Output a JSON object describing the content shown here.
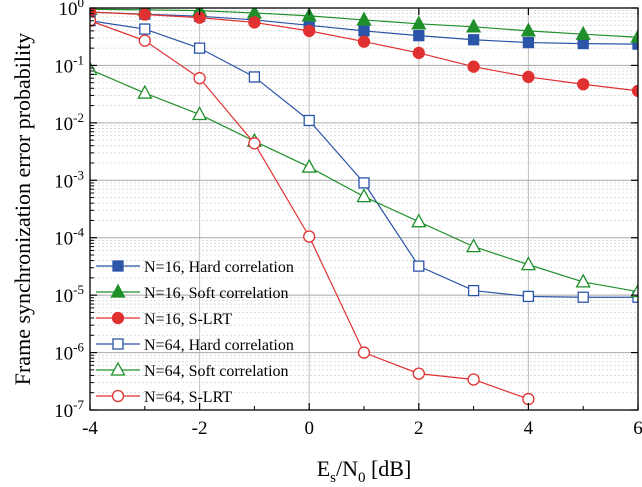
{
  "chart_data": {
    "type": "line",
    "title": "",
    "xlabel": "E_s/N_0 [dB]",
    "xlabel_parts": {
      "main": "E",
      "sub1": "s",
      "mid": "/N",
      "sub2": "0",
      "unit": " [dB]"
    },
    "ylabel": "Frame synchronization error probability",
    "x_scale": "linear",
    "y_scale": "log",
    "xlim": [
      -4,
      6
    ],
    "ylim": [
      1e-07,
      1
    ],
    "xticks": [
      -4,
      -2,
      0,
      2,
      4,
      6
    ],
    "xtick_labels": [
      "-4",
      "-2",
      "0",
      "2",
      "4",
      "6"
    ],
    "yticks": [
      1e-07,
      1e-06,
      1e-05,
      0.0001,
      0.001,
      0.01,
      0.1,
      1
    ],
    "ytick_labels": [
      {
        "base": "10",
        "exp": "-7"
      },
      {
        "base": "10",
        "exp": "-6"
      },
      {
        "base": "10",
        "exp": "-5"
      },
      {
        "base": "10",
        "exp": "-4"
      },
      {
        "base": "10",
        "exp": "-3"
      },
      {
        "base": "10",
        "exp": "-2"
      },
      {
        "base": "10",
        "exp": "-1"
      },
      {
        "base": "10",
        "exp": "0"
      }
    ],
    "grid": true,
    "legend_position": "bottom-left",
    "series": [
      {
        "name": "N=16, Hard correlation",
        "color": "#2b55a8",
        "marker": "square",
        "filled": true,
        "x": [
          -4,
          -3,
          -2,
          -1,
          0,
          1,
          2,
          3,
          4,
          5,
          6
        ],
        "y": [
          0.85,
          0.78,
          0.72,
          0.62,
          0.5,
          0.4,
          0.33,
          0.28,
          0.25,
          0.24,
          0.235
        ]
      },
      {
        "name": "N=16, Soft correlation",
        "color": "#1f8f2a",
        "marker": "triangle",
        "filled": true,
        "x": [
          -4,
          -3,
          -2,
          -1,
          0,
          1,
          2,
          3,
          4,
          5,
          6
        ],
        "y": [
          0.95,
          0.93,
          0.9,
          0.82,
          0.73,
          0.62,
          0.53,
          0.47,
          0.4,
          0.35,
          0.31
        ]
      },
      {
        "name": "N=16, S-LRT",
        "color": "#e03131",
        "marker": "circle",
        "filled": true,
        "x": [
          -4,
          -3,
          -2,
          -1,
          0,
          1,
          2,
          3,
          4,
          5,
          6
        ],
        "y": [
          0.85,
          0.77,
          0.68,
          0.56,
          0.4,
          0.26,
          0.165,
          0.095,
          0.063,
          0.047,
          0.036
        ]
      },
      {
        "name": "N=64, Hard correlation",
        "color": "#2b55a8",
        "marker": "square",
        "filled": false,
        "x": [
          -4,
          -3,
          -2,
          -1,
          0,
          1,
          2,
          3,
          4,
          5,
          6
        ],
        "y": [
          0.6,
          0.43,
          0.2,
          0.063,
          0.011,
          0.0009,
          3.2e-05,
          1.2e-05,
          9.5e-06,
          9.2e-06,
          9.2e-06
        ]
      },
      {
        "name": "N=64, Soft correlation",
        "color": "#1f8f2a",
        "marker": "triangle",
        "filled": false,
        "x": [
          -4,
          -3,
          -2,
          -1,
          0,
          1,
          2,
          3,
          4,
          5,
          6
        ],
        "y": [
          0.085,
          0.033,
          0.014,
          0.0048,
          0.0017,
          0.00052,
          0.00019,
          7e-05,
          3.4e-05,
          1.7e-05,
          1.15e-05
        ]
      },
      {
        "name": "N=64, S-LRT",
        "color": "#e03131",
        "marker": "circle",
        "filled": false,
        "x": [
          -4,
          -3,
          -2,
          -1,
          0,
          1,
          2,
          3,
          4
        ],
        "y": [
          0.6,
          0.27,
          0.06,
          0.0044,
          0.000105,
          1e-06,
          4.3e-07,
          3.4e-07,
          1.55e-07
        ]
      }
    ]
  }
}
